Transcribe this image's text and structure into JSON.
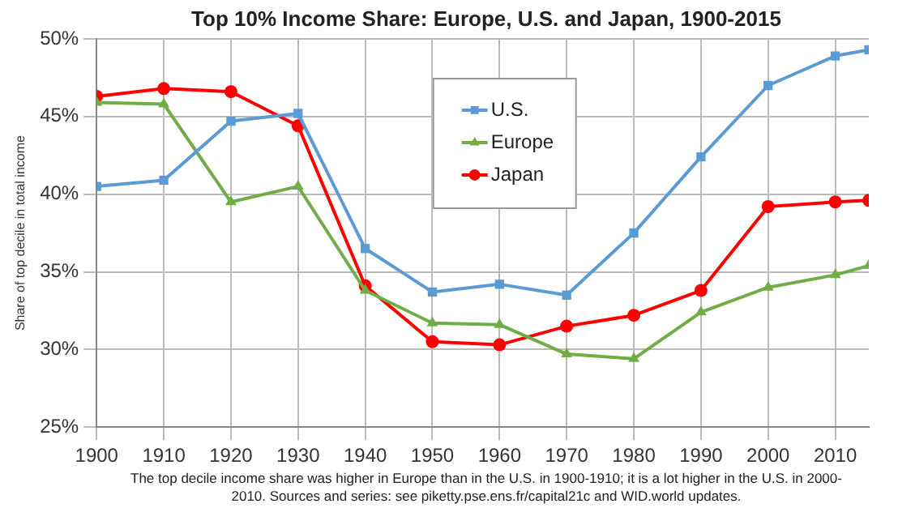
{
  "chart_data": {
    "type": "line",
    "title": "Top 10% Income Share: Europe, U.S. and Japan, 1900-2015",
    "ylabel": "Share of top decile in total income",
    "x": [
      1900,
      1910,
      1920,
      1930,
      1940,
      1950,
      1960,
      1970,
      1980,
      1990,
      2000,
      2010,
      2015
    ],
    "series": [
      {
        "name": "U.S.",
        "color": "#5b9bd5",
        "marker": "square",
        "values": [
          40.5,
          40.9,
          44.7,
          45.2,
          36.5,
          33.7,
          34.2,
          33.5,
          37.5,
          42.4,
          47.0,
          48.9,
          49.3
        ]
      },
      {
        "name": "Europe",
        "color": "#70ad47",
        "marker": "triangle",
        "values": [
          45.9,
          45.8,
          39.5,
          40.5,
          33.8,
          31.7,
          31.6,
          29.7,
          29.4,
          32.4,
          34.0,
          34.8,
          35.4
        ]
      },
      {
        "name": "Japan",
        "color": "#ff0000",
        "marker": "circle",
        "values": [
          46.3,
          46.8,
          46.6,
          44.4,
          34.1,
          30.5,
          30.3,
          31.5,
          32.2,
          33.8,
          39.2,
          39.5,
          39.6
        ]
      }
    ],
    "xlim": [
      1900,
      2015
    ],
    "xticks": [
      1900,
      1910,
      1920,
      1930,
      1940,
      1950,
      1960,
      1970,
      1980,
      1990,
      2000,
      2010
    ],
    "ylim": [
      25,
      50
    ],
    "yticks": [
      {
        "value": 25,
        "label": "25%"
      },
      {
        "value": 30,
        "label": "30%"
      },
      {
        "value": 35,
        "label": "35%"
      },
      {
        "value": 40,
        "label": "40%"
      },
      {
        "value": 45,
        "label": "45%"
      },
      {
        "value": 50,
        "label": "50%"
      }
    ],
    "grid": true,
    "legend": "top",
    "line_style": "solid",
    "annotations": [
      "The top decile income share was higher in Europe than in the U.S. in 1900-1910; it is a lot higher in the U.S. in 2000-2010. Sources and series: see piketty.pse.ens.fr/capital21c and WID.world updates."
    ]
  }
}
